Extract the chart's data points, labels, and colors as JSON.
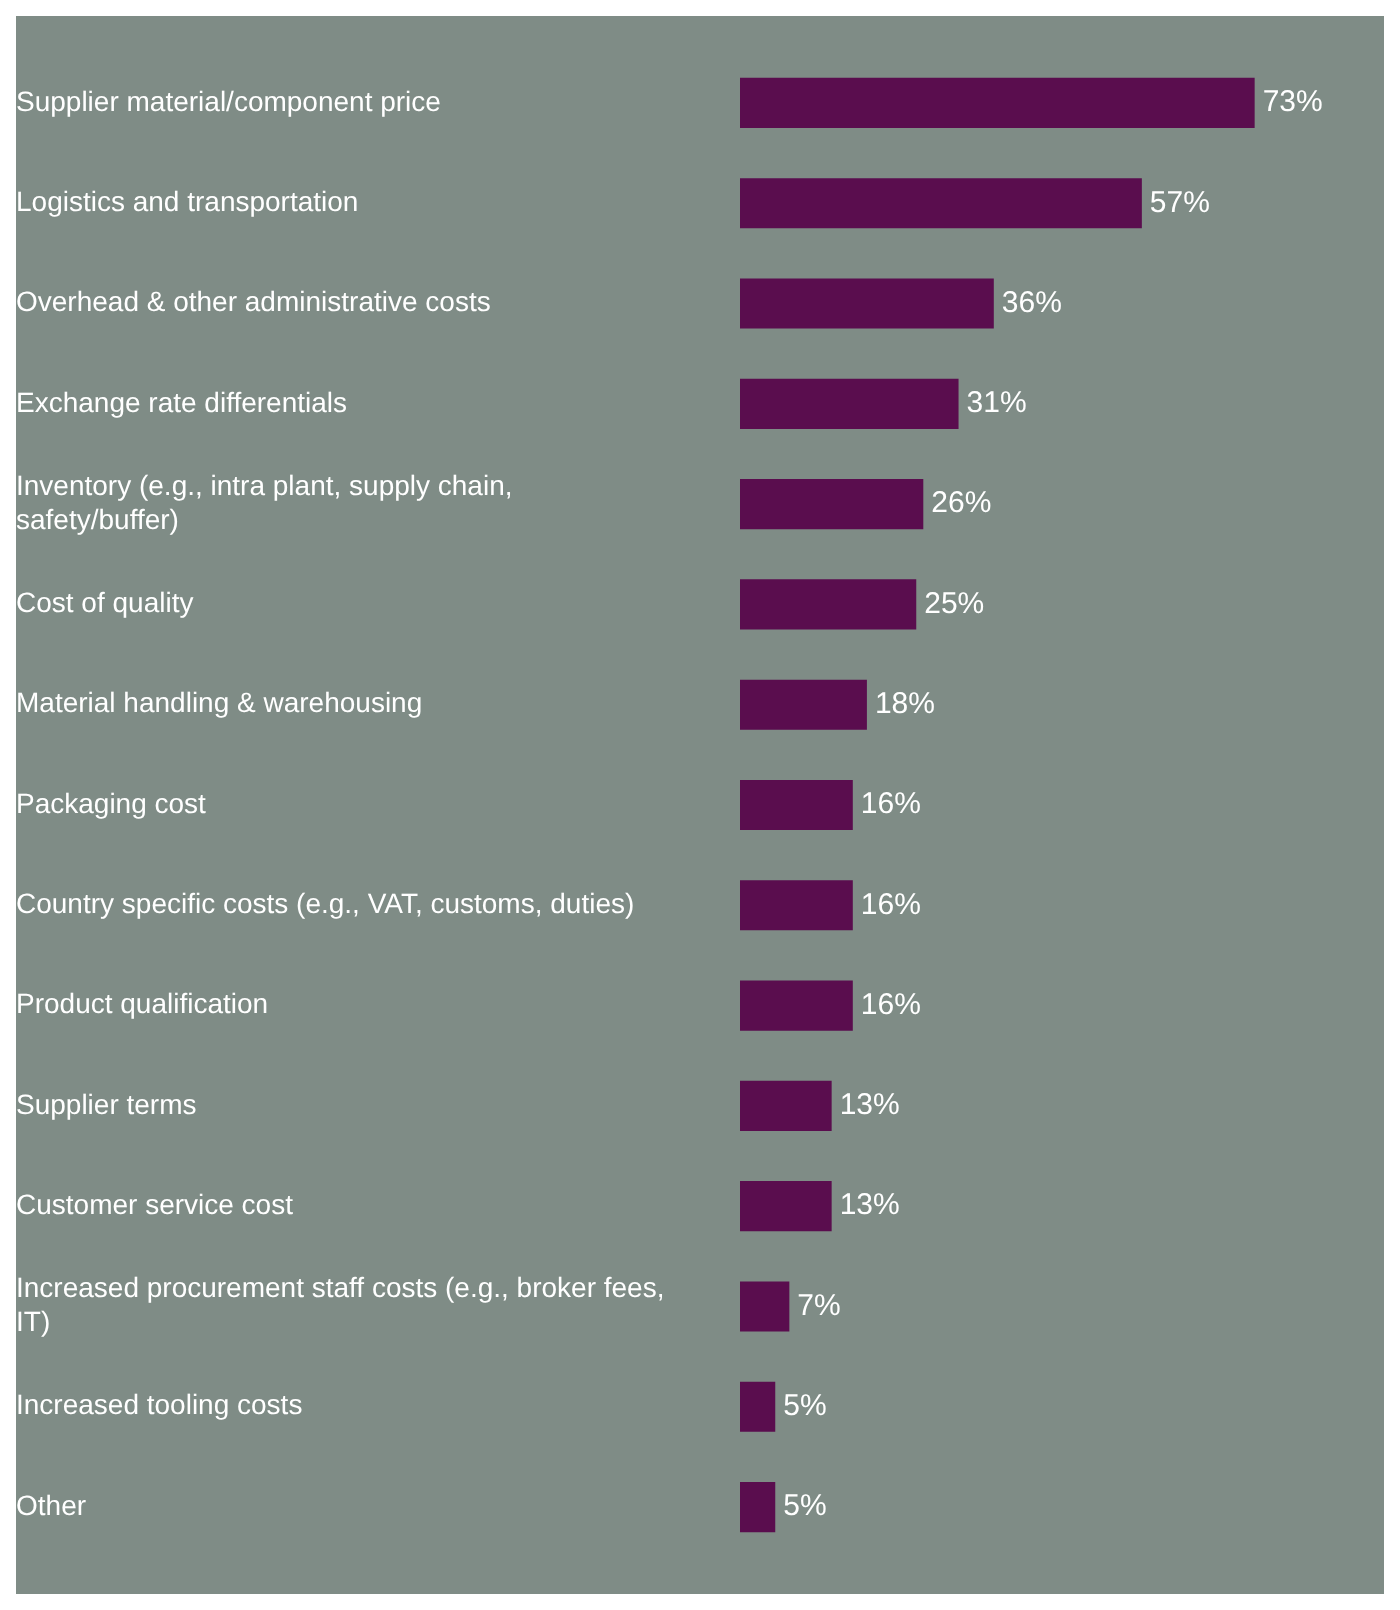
{
  "chart_data": {
    "type": "bar",
    "orientation": "horizontal",
    "categories": [
      "Supplier material/component price",
      "Logistics and transportation",
      "Overhead & other administrative costs",
      "Exchange rate differentials",
      "Inventory (e.g., intra plant, supply chain, safety/buffer)",
      "Cost of quality",
      "Material handling & warehousing",
      "Packaging cost",
      "Country specific costs (e.g., VAT, customs, duties)",
      "Product qualification",
      "Supplier terms",
      "Customer service cost",
      "Increased procurement staff costs (e.g., broker fees, IT)",
      "Increased tooling costs",
      "Other"
    ],
    "values": [
      73,
      57,
      36,
      31,
      26,
      25,
      18,
      16,
      16,
      16,
      13,
      13,
      7,
      5,
      5
    ],
    "value_labels": [
      "73%",
      "57%",
      "36%",
      "31%",
      "26%",
      "25%",
      "18%",
      "16%",
      "16%",
      "16%",
      "13%",
      "13%",
      "7%",
      "5%",
      "5%"
    ],
    "color": "#5a0d4e",
    "grid": false,
    "legend": false
  }
}
